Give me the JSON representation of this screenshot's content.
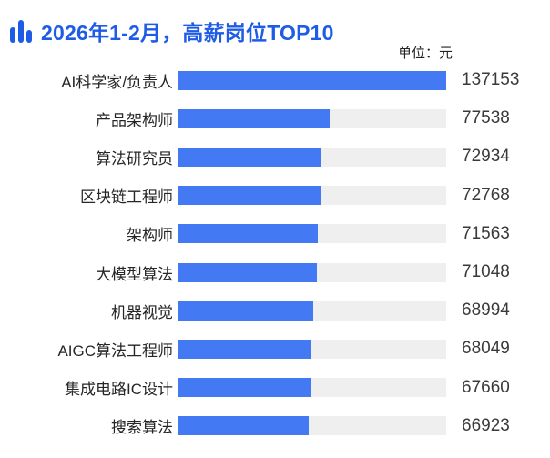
{
  "header": {
    "title": "2026年1-2月，高薪岗位TOP10",
    "unit_label": "单位：元"
  },
  "colors": {
    "title_blue": "#1e5ce6",
    "bar_fill": "#4379f2",
    "bar_track": "#efefef",
    "label_text": "#262626",
    "value_text": "#3a3a3a"
  },
  "chart_data": {
    "type": "bar",
    "orientation": "horizontal",
    "title": "2026年1-2月，高薪岗位TOP10",
    "unit": "元",
    "categories": [
      "AI科学家/负责人",
      "产品架构师",
      "算法研究员",
      "区块链工程师",
      "架构师",
      "大模型算法",
      "机器视觉",
      "AIGC算法工程师",
      "集成电路IC设计",
      "搜索算法"
    ],
    "values": [
      137153,
      77538,
      72934,
      72768,
      71563,
      71048,
      68994,
      68049,
      67660,
      66923
    ],
    "max_value": 137153,
    "value_labels_visible": true,
    "grid": false,
    "legend": false
  }
}
